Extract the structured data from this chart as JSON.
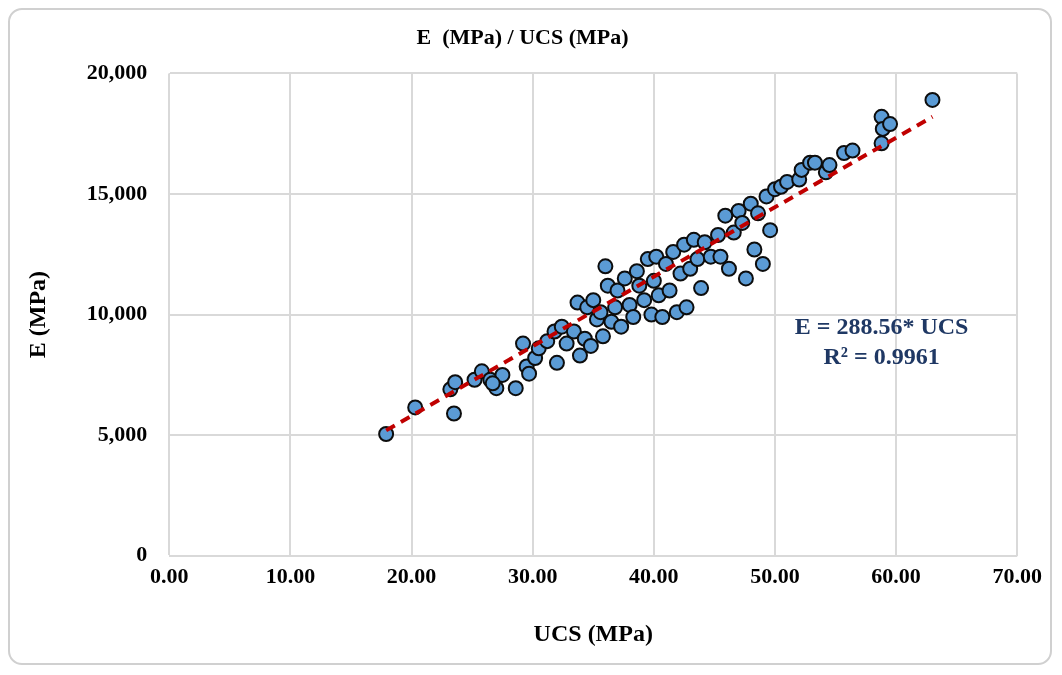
{
  "chart_data": {
    "type": "scatter",
    "title": "E  (MPa) / UCS (MPa)",
    "xlabel": "UCS (MPa)",
    "ylabel": "E (MPa)",
    "xlim": [
      0,
      70
    ],
    "xticks": [
      {
        "value": 0,
        "label": "0.00"
      },
      {
        "value": 10,
        "label": "10.00"
      },
      {
        "value": 20,
        "label": "20.00"
      },
      {
        "value": 30,
        "label": "30.00"
      },
      {
        "value": 40,
        "label": "40.00"
      },
      {
        "value": 50,
        "label": "50.00"
      },
      {
        "value": 60,
        "label": "60.00"
      },
      {
        "value": 70,
        "label": "70.00"
      }
    ],
    "ylim": [
      0,
      20000
    ],
    "yticks": [
      0,
      {
        "value": 5000,
        "label": "5,000"
      },
      {
        "value": 10000,
        "label": "10,000"
      },
      {
        "value": 15000,
        "label": "15,000"
      },
      {
        "value": 20000,
        "label": "20,000"
      }
    ],
    "grid": true,
    "legend": false,
    "marker": "circle",
    "annotations": [
      "E = 288.56* UCS",
      "R² = 0.9961"
    ],
    "series": [
      {
        "color": "#5b9bd5",
        "x": [
          17.9,
          20.3,
          23.5,
          23.2,
          23.6,
          25.2,
          25.8,
          26.5,
          27.0,
          27.5,
          26.7,
          28.6,
          29.2,
          29.5,
          29.7,
          30.2,
          30.5,
          31.2,
          31.8,
          32.0,
          32.4,
          32.8,
          33.4,
          33.7,
          33.9,
          34.3,
          34.5,
          34.8,
          35.0,
          35.3,
          35.6,
          35.8,
          36.0,
          36.2,
          36.5,
          36.8,
          37.0,
          37.3,
          37.6,
          38.0,
          38.3,
          38.6,
          38.8,
          39.2,
          39.5,
          39.8,
          40.0,
          40.2,
          40.4,
          40.7,
          41.0,
          41.3,
          41.6,
          41.9,
          42.2,
          42.5,
          42.7,
          43.0,
          43.3,
          43.6,
          43.9,
          44.2,
          44.7,
          45.3,
          45.5,
          45.9,
          46.2,
          46.6,
          47.0,
          47.3,
          47.6,
          48.0,
          48.3,
          48.6,
          49.0,
          49.3,
          49.6,
          50.0,
          50.5,
          51.0,
          52.0,
          52.2,
          52.9,
          53.3,
          54.2,
          54.5,
          55.7,
          56.4,
          58.8,
          58.8,
          58.9,
          59.5,
          63.0
        ],
        "values": [
          5050,
          6150,
          5900,
          6900,
          7200,
          7300,
          7650,
          7300,
          6950,
          7500,
          7150,
          6950,
          8800,
          7850,
          7550,
          8200,
          8600,
          8900,
          9300,
          8000,
          9500,
          8800,
          9300,
          10500,
          8300,
          9000,
          10300,
          8700,
          10600,
          9800,
          10100,
          9100,
          12000,
          11200,
          9700,
          10300,
          11000,
          9500,
          11500,
          10400,
          9900,
          11800,
          11200,
          10600,
          12300,
          10000,
          11400,
          12400,
          10800,
          9900,
          12100,
          11000,
          12600,
          10100,
          11700,
          12900,
          10300,
          11900,
          13100,
          12300,
          11100,
          13000,
          12400,
          13300,
          12400,
          14100,
          11900,
          13400,
          14300,
          13800,
          11500,
          14600,
          12700,
          14200,
          12100,
          14900,
          13500,
          15200,
          15300,
          15500,
          15600,
          16000,
          16300,
          16300,
          15900,
          16200,
          16700,
          16800,
          18200,
          17100,
          17700,
          17900,
          18900
        ]
      },
      {
        "type": "line",
        "color": "#c00000",
        "marker": "none",
        "line_style": "dashed",
        "x": [
          17.9,
          63.0
        ],
        "values": [
          5200,
          18200
        ]
      }
    ]
  }
}
